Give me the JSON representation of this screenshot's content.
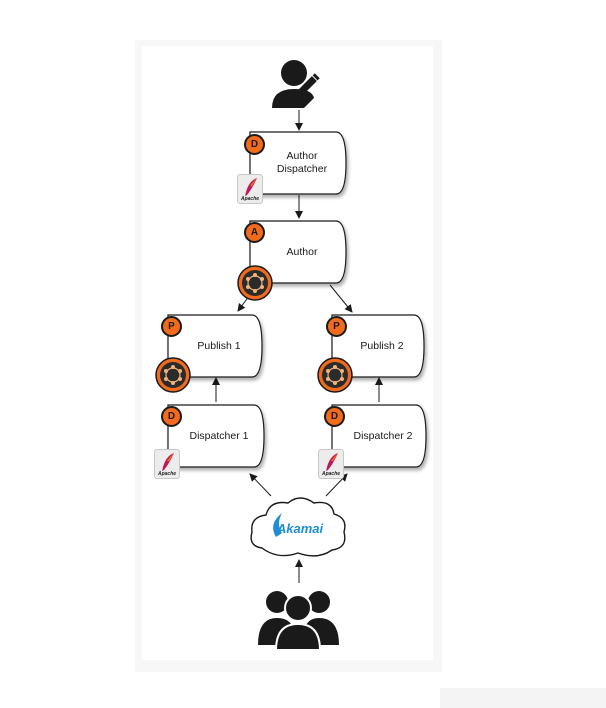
{
  "nodes": {
    "author_dispatcher": {
      "label_line1": "Author",
      "label_line2": "Dispatcher",
      "badge": "D"
    },
    "author": {
      "label": "Author",
      "badge": "A"
    },
    "publish1": {
      "label": "Publish 1",
      "badge": "P"
    },
    "publish2": {
      "label": "Publish 2",
      "badge": "P"
    },
    "dispatcher1": {
      "label": "Dispatcher 1",
      "badge": "D"
    },
    "dispatcher2": {
      "label": "Dispatcher 2",
      "badge": "D"
    }
  },
  "apache_label": "Apache",
  "cdn": {
    "label": "Akamai"
  },
  "icons": {
    "author_user": "author-with-pencil-icon",
    "end_users": "user-group-icon",
    "cloud": "cloud-icon",
    "apache": "apache-feather-icon",
    "aem": "aem-icon"
  },
  "colors": {
    "badge": "#f26a1b",
    "akamai": "#1e8fd6",
    "aem_ring": "#f26a1b",
    "aem_core": "#2b2b2b"
  }
}
